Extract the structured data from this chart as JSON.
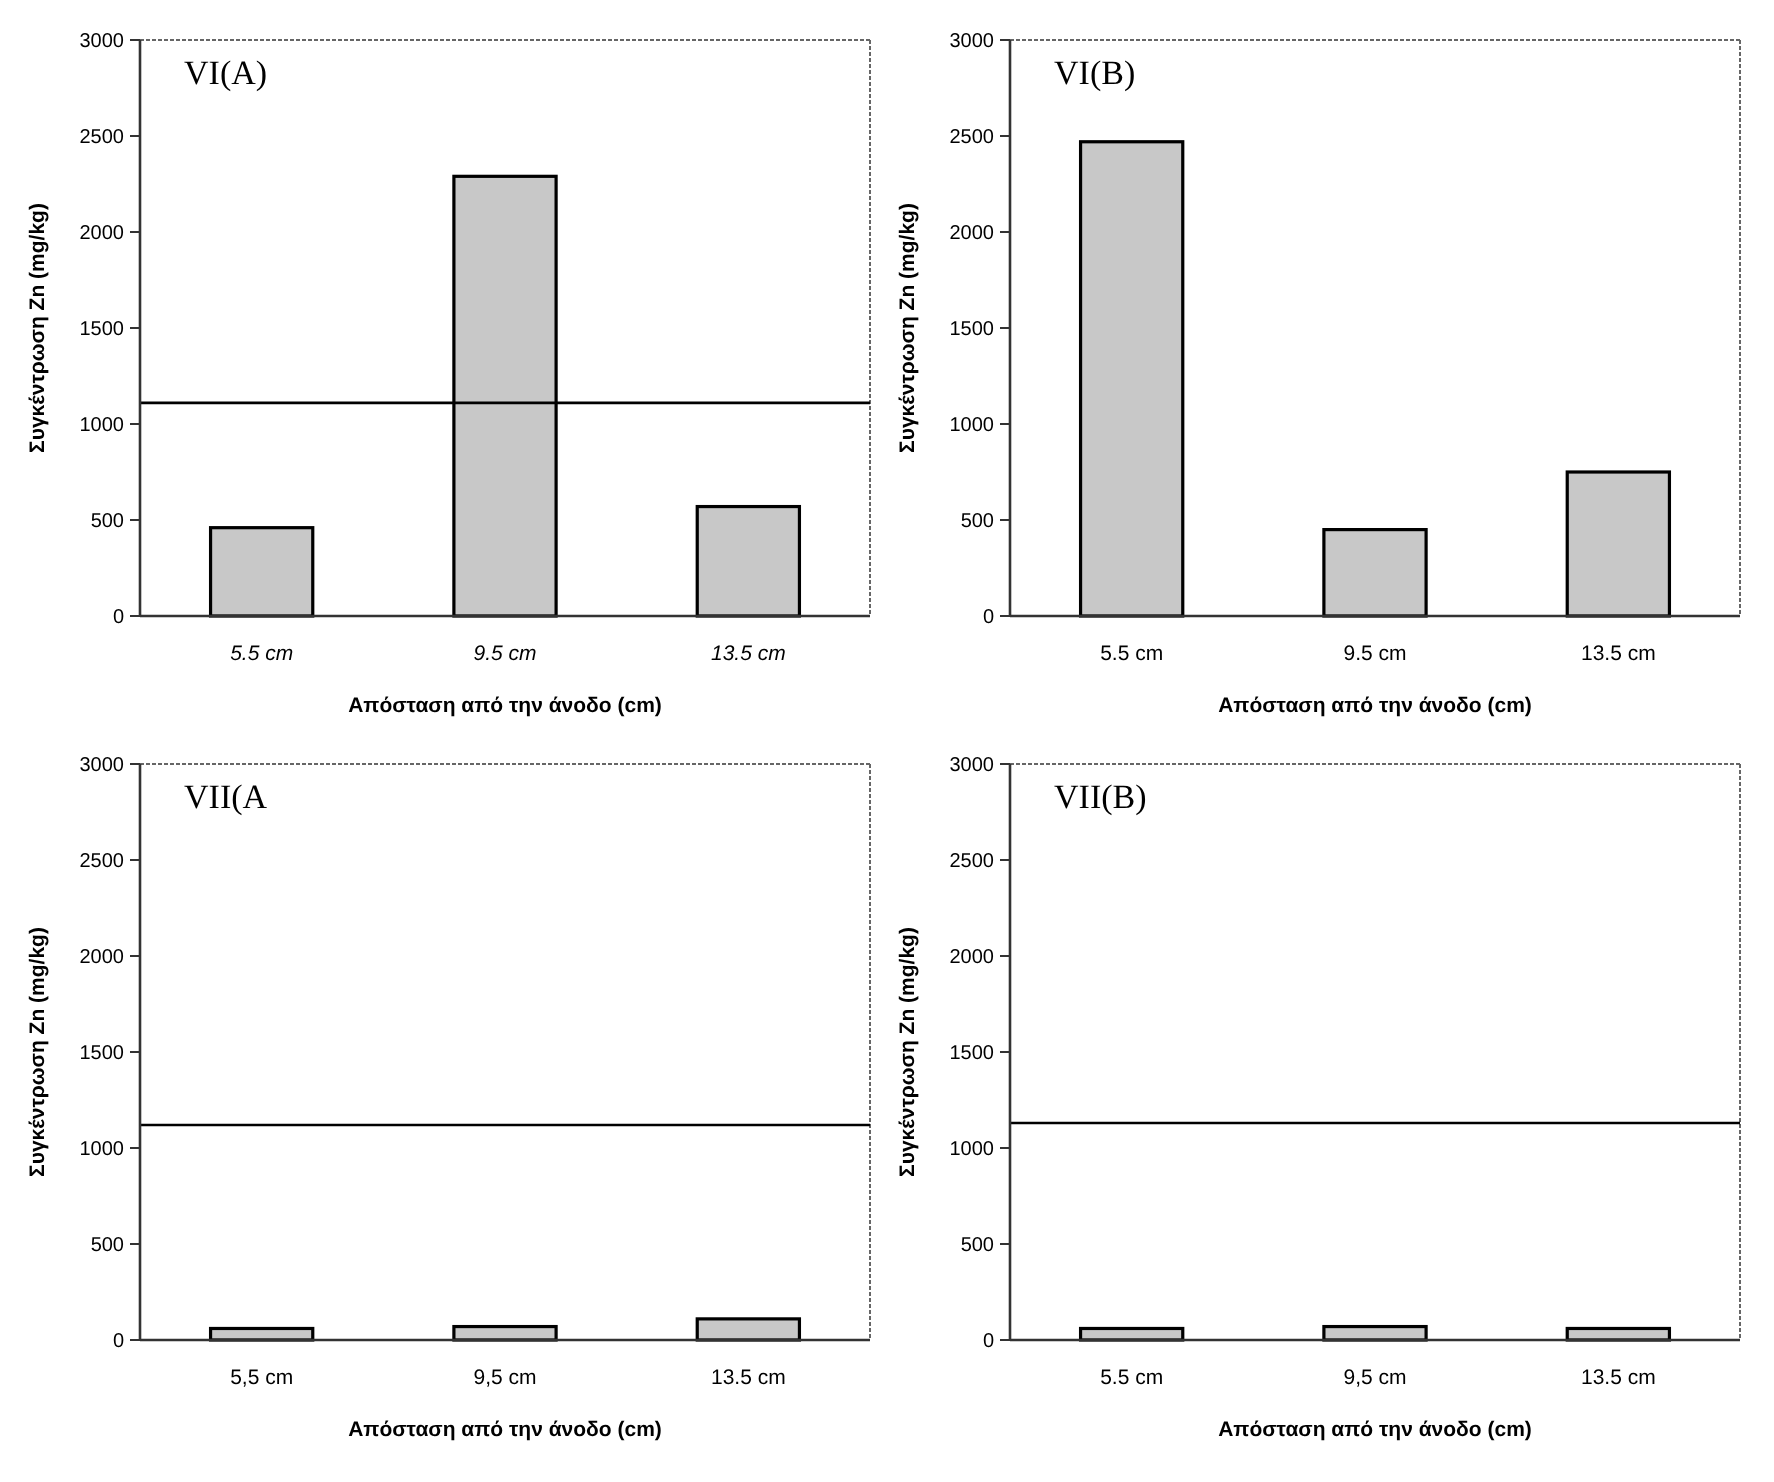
{
  "chart_data": [
    {
      "type": "bar",
      "title": "VI(A)",
      "xlabel": "Απόσταση από την άνοδο (cm)",
      "ylabel": "Συγκέντρωση Zn (mg/kg)",
      "categories": [
        "5.5 cm",
        "9.5 cm",
        "13.5 cm"
      ],
      "values": [
        460,
        2290,
        570
      ],
      "color": "#c8c8c8",
      "ylim": [
        0,
        3000
      ],
      "yticks": [
        0,
        500,
        1000,
        1500,
        2000,
        2500,
        3000
      ],
      "ref_lines": [
        {
          "axis": "y",
          "value": 1110,
          "color": "#000000"
        }
      ],
      "grid": false
    },
    {
      "type": "bar",
      "title": "VI(B)",
      "xlabel": "Απόσταση από την άνοδο (cm)",
      "ylabel": "Συγκέντρωση Zn (mg/kg)",
      "categories": [
        "5.5 cm",
        "9.5 cm",
        "13.5 cm"
      ],
      "values": [
        2470,
        450,
        750
      ],
      "color": "#c8c8c8",
      "ylim": [
        0,
        3000
      ],
      "yticks": [
        0,
        500,
        1000,
        1500,
        2000,
        2500,
        3000
      ],
      "grid": false
    },
    {
      "type": "bar",
      "title": "VII(A",
      "xlabel": "Απόσταση από την άνοδο (cm)",
      "ylabel": "Συγκέντρωση Zn (mg/kg)",
      "categories": [
        "5,5 cm",
        "9,5 cm",
        "13.5 cm"
      ],
      "values": [
        60,
        70,
        110
      ],
      "color": "#c8c8c8",
      "ylim": [
        0,
        3000
      ],
      "yticks": [
        0,
        500,
        1000,
        1500,
        2000,
        2500,
        3000
      ],
      "ref_lines": [
        {
          "axis": "y",
          "value": 1120,
          "color": "#000000"
        }
      ],
      "grid": false
    },
    {
      "type": "bar",
      "title": "VII(B)",
      "xlabel": "Απόσταση από την άνοδο (cm)",
      "ylabel": "Συγκέντρωση Zn (mg/kg)",
      "categories": [
        "5.5 cm",
        "9,5 cm",
        "13.5 cm"
      ],
      "values": [
        60,
        70,
        60
      ],
      "color": "#c8c8c8",
      "ylim": [
        0,
        3000
      ],
      "yticks": [
        0,
        500,
        1000,
        1500,
        2000,
        2500,
        3000
      ],
      "ref_lines": [
        {
          "axis": "y",
          "value": 1130,
          "color": "#000000"
        }
      ],
      "grid": false
    }
  ]
}
